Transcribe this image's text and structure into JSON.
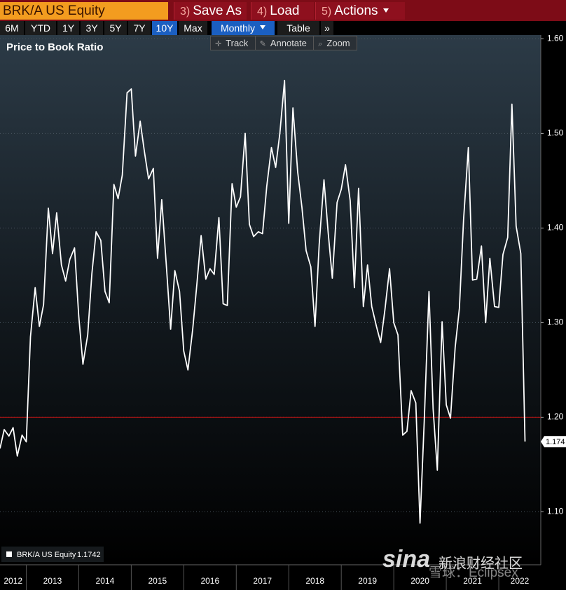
{
  "header": {
    "security": "BRK/A US Equity",
    "actions": [
      {
        "key": "3)",
        "label": "Save As"
      },
      {
        "key": "4)",
        "label": "Load"
      },
      {
        "key": "5)",
        "label": "Actions"
      }
    ]
  },
  "periods": [
    "6M",
    "YTD",
    "1Y",
    "3Y",
    "5Y",
    "7Y",
    "10Y",
    "Max"
  ],
  "active_period": "10Y",
  "frequency": "Monthly",
  "view": "Table",
  "more": "»",
  "tools": [
    "Track",
    "Annotate",
    "Zoom"
  ],
  "watermark": {
    "brand": "sina",
    "site": "新浪财经社区",
    "credit": "雪球：Eclipsex"
  },
  "chart_data": {
    "type": "line",
    "title": "Price to Book Ratio",
    "x": [
      2012.5,
      2012.58,
      2012.67,
      2012.75,
      2012.83,
      2012.92,
      2013,
      2013.08,
      2013.17,
      2013.25,
      2013.33,
      2013.42,
      2013.5,
      2013.58,
      2013.67,
      2013.75,
      2013.83,
      2013.92,
      2014,
      2014.08,
      2014.17,
      2014.25,
      2014.33,
      2014.42,
      2014.5,
      2014.58,
      2014.67,
      2014.75,
      2014.83,
      2014.92,
      2015,
      2015.08,
      2015.17,
      2015.25,
      2015.33,
      2015.42,
      2015.5,
      2015.58,
      2015.67,
      2015.75,
      2015.83,
      2015.92,
      2016,
      2016.08,
      2016.17,
      2016.25,
      2016.33,
      2016.42,
      2016.5,
      2016.58,
      2016.67,
      2016.75,
      2016.83,
      2016.92,
      2017,
      2017.08,
      2017.17,
      2017.25,
      2017.33,
      2017.42,
      2017.5,
      2017.58,
      2017.67,
      2017.75,
      2017.83,
      2017.92,
      2018,
      2018.08,
      2018.17,
      2018.25,
      2018.33,
      2018.42,
      2018.5,
      2018.58,
      2018.67,
      2018.75,
      2018.83,
      2018.92,
      2019,
      2019.08,
      2019.17,
      2019.25,
      2019.33,
      2019.42,
      2019.5,
      2019.58,
      2019.67,
      2019.75,
      2019.83,
      2019.92,
      2020,
      2020.08,
      2020.17,
      2020.25,
      2020.33,
      2020.42,
      2020.5,
      2020.58,
      2020.67,
      2020.75,
      2020.83,
      2020.92,
      2021,
      2021.08,
      2021.17,
      2021.25,
      2021.33,
      2021.42,
      2021.5,
      2021.58,
      2021.67,
      2021.75,
      2021.83,
      2021.92,
      2022,
      2022.08,
      2022.17,
      2022.25,
      2022.33,
      2022.42,
      2022.5
    ],
    "series": [
      {
        "name": "BRK/A US Equity",
        "color": "#ffffff",
        "last_label": "1.174",
        "values": [
          1.167,
          1.187,
          1.18,
          1.189,
          1.159,
          1.181,
          1.174,
          1.285,
          1.337,
          1.296,
          1.319,
          1.421,
          1.373,
          1.416,
          1.361,
          1.344,
          1.367,
          1.379,
          1.307,
          1.256,
          1.287,
          1.352,
          1.396,
          1.387,
          1.333,
          1.321,
          1.446,
          1.431,
          1.456,
          1.543,
          1.547,
          1.476,
          1.513,
          1.481,
          1.452,
          1.463,
          1.368,
          1.43,
          1.359,
          1.293,
          1.355,
          1.333,
          1.27,
          1.25,
          1.293,
          1.341,
          1.392,
          1.346,
          1.357,
          1.351,
          1.411,
          1.32,
          1.318,
          1.447,
          1.422,
          1.433,
          1.5,
          1.404,
          1.391,
          1.396,
          1.394,
          1.444,
          1.485,
          1.464,
          1.5,
          1.556,
          1.405,
          1.527,
          1.459,
          1.422,
          1.376,
          1.359,
          1.296,
          1.383,
          1.451,
          1.396,
          1.347,
          1.427,
          1.441,
          1.467,
          1.429,
          1.337,
          1.442,
          1.317,
          1.361,
          1.317,
          1.296,
          1.279,
          1.313,
          1.357,
          1.3,
          1.287,
          1.181,
          1.185,
          1.228,
          1.215,
          1.088,
          1.195,
          1.333,
          1.209,
          1.144,
          1.301,
          1.213,
          1.199,
          1.274,
          1.315,
          1.409,
          1.485,
          1.345,
          1.346,
          1.381,
          1.3,
          1.368,
          1.317,
          1.316,
          1.372,
          1.39,
          1.531,
          1.402,
          1.373,
          1.1742
        ]
      }
    ],
    "xlim": [
      2012.5,
      2022.8
    ],
    "xticks": [
      2012,
      2013,
      2014,
      2015,
      2016,
      2017,
      2018,
      2019,
      2020,
      2021,
      2022
    ],
    "ylim": [
      1.044,
      1.604
    ],
    "yticks": [
      {
        "value": 1.1,
        "label": "1.10"
      },
      {
        "value": 1.2,
        "label": "1.20"
      },
      {
        "value": 1.3,
        "label": "1.30"
      },
      {
        "value": 1.4,
        "label": "1.40"
      },
      {
        "value": 1.5,
        "label": "1.50"
      },
      {
        "value": 1.6,
        "label": "1.60"
      }
    ],
    "grid": true,
    "reference_line": {
      "value": 1.2,
      "color": "#d01414"
    }
  }
}
